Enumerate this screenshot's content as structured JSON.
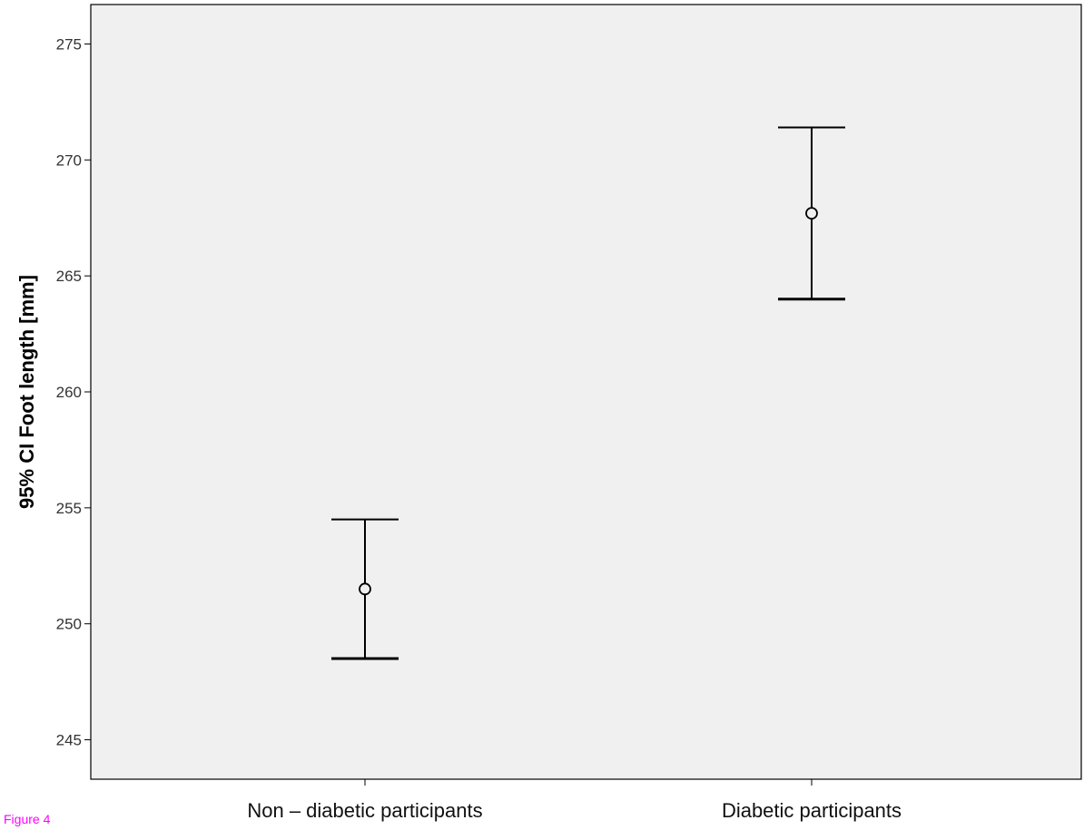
{
  "figure_label": "Figure 4",
  "chart_data": {
    "type": "errorbar",
    "title": "",
    "xlabel": "",
    "ylabel": "95% CI Foot length [mm]",
    "ylim": [
      243.3,
      276.7
    ],
    "yticks": [
      245,
      250,
      255,
      260,
      265,
      270,
      275
    ],
    "categories": [
      "Non – diabetic participants",
      "Diabetic participants"
    ],
    "mean": [
      251.5,
      267.7
    ],
    "ci_lower": [
      248.5,
      264.0
    ],
    "ci_upper": [
      254.5,
      271.4
    ],
    "grid": false,
    "legend": "none",
    "colors": {
      "plot_background": "#f0f0f0",
      "marks": "#000000",
      "figure_label": "#ff00ff"
    }
  }
}
